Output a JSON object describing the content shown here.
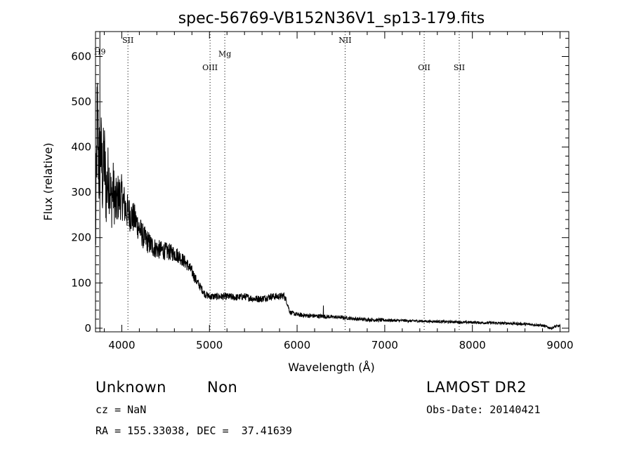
{
  "chart_data": {
    "type": "line",
    "title": "spec-56769-VB152N36V1_sp13-179.fits",
    "xlabel": "Wavelength (Å)",
    "ylabel": "Flux (relative)",
    "xlim": [
      3700,
      9100
    ],
    "ylim": [
      -8,
      655
    ],
    "xticks": [
      4000,
      5000,
      6000,
      7000,
      8000,
      9000
    ],
    "yticks": [
      0,
      100,
      200,
      300,
      400,
      500,
      600
    ],
    "grid": false,
    "line_color": "#000000",
    "series": [
      {
        "x": [
          3700,
          3720,
          3740,
          3760,
          3780,
          3800,
          3820,
          3850,
          3880,
          3900,
          3930,
          3960,
          4000,
          4050,
          4100,
          4150,
          4200,
          4250,
          4300,
          4350,
          4400,
          4450,
          4500,
          4550,
          4600,
          4650,
          4700,
          4750,
          4800,
          4850,
          4900,
          4950,
          5000,
          5100,
          5200,
          5300,
          5400,
          5500,
          5600,
          5700,
          5800,
          5850,
          5880,
          5920,
          6000,
          6100,
          6200,
          6300,
          6400,
          6500,
          6600,
          6700,
          6800,
          6900,
          7000,
          7100,
          7200,
          7300,
          7400,
          7500,
          7600,
          7700,
          7800,
          7900,
          8000,
          8100,
          8200,
          8300,
          8400,
          8500,
          8600,
          8700,
          8800,
          8850,
          8900,
          8950,
          9000
        ],
        "y": [
          180,
          480,
          350,
          400,
          330,
          380,
          300,
          340,
          280,
          310,
          270,
          290,
          290,
          260,
          250,
          240,
          220,
          200,
          190,
          180,
          175,
          172,
          170,
          168,
          165,
          160,
          150,
          140,
          125,
          105,
          90,
          75,
          70,
          70,
          70,
          68,
          70,
          65,
          65,
          70,
          70,
          72,
          60,
          35,
          30,
          28,
          27,
          26,
          25,
          24,
          22,
          20,
          19,
          18,
          18,
          17,
          17,
          16,
          16,
          15,
          15,
          14,
          14,
          13,
          13,
          12,
          12,
          11,
          11,
          10,
          9,
          8,
          6,
          3,
          0,
          4,
          5
        ],
        "noise": [
          80,
          120,
          110,
          100,
          95,
          90,
          85,
          75,
          70,
          65,
          60,
          55,
          50,
          42,
          38,
          34,
          30,
          28,
          26,
          24,
          22,
          21,
          20,
          19,
          18,
          17,
          15,
          14,
          13,
          11,
          9,
          8,
          8,
          8,
          8,
          8,
          8,
          8,
          8,
          8,
          8,
          8,
          7,
          5,
          5,
          5,
          5,
          5,
          4,
          4,
          4,
          4,
          4,
          4,
          4,
          3,
          3,
          3,
          3,
          3,
          3,
          3,
          3,
          3,
          3,
          3,
          3,
          3,
          3,
          3,
          3,
          3,
          3,
          3,
          3,
          3,
          3
        ]
      }
    ],
    "spike": {
      "x": 6300,
      "y": 50
    },
    "lines": [
      {
        "label": "H9",
        "x": 3750,
        "style": "solid",
        "label_y": 605
      },
      {
        "label": "SII",
        "x": 4070,
        "style": "dotted",
        "label_y": 630
      },
      {
        "label": "OIII",
        "x": 5007,
        "style": "dotted",
        "label_y": 570
      },
      {
        "label": "Mg",
        "x": 5175,
        "style": "dotted",
        "label_y": 600
      },
      {
        "label": "NII",
        "x": 6548,
        "style": "dotted",
        "label_y": 630
      },
      {
        "label": "OII",
        "x": 7450,
        "style": "dotted",
        "label_y": 570
      },
      {
        "label": "SII",
        "x": 7850,
        "style": "dotted",
        "label_y": 570
      }
    ]
  },
  "info": {
    "class": "Unknown",
    "subclass": "Non",
    "survey": "LAMOST DR2",
    "cz": "cz = NaN",
    "obs_date": "Obs-Date: 20140421",
    "coords": "RA = 155.33038, DEC =  37.41639"
  }
}
